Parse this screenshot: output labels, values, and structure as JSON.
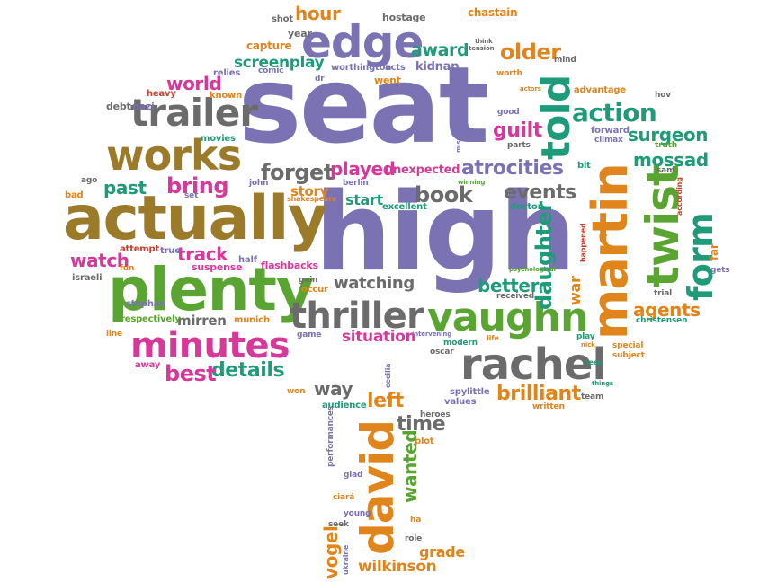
{
  "colors": {
    "purple": "#7b72b4",
    "brown": "#9b7a2a",
    "green": "#5aa532",
    "magenta": "#d6399a",
    "orange": "#e0841c",
    "teal": "#1f9b7a",
    "gray": "#6b6b6b",
    "red": "#c4412a"
  },
  "words": [
    {
      "text": "seat",
      "color": "purple"
    },
    {
      "text": "high",
      "color": "purple"
    },
    {
      "text": "actually",
      "color": "brown"
    },
    {
      "text": "plenty",
      "color": "green"
    },
    {
      "text": "edge",
      "color": "purple"
    },
    {
      "text": "works",
      "color": "brown"
    },
    {
      "text": "trailer",
      "color": "gray"
    },
    {
      "text": "minutes",
      "color": "magenta"
    },
    {
      "text": "thriller",
      "color": "gray"
    },
    {
      "text": "vaughn",
      "color": "green"
    },
    {
      "text": "rachel",
      "color": "gray"
    },
    {
      "text": "martin",
      "color": "orange"
    },
    {
      "text": "twist",
      "color": "green"
    },
    {
      "text": "told",
      "color": "green"
    },
    {
      "text": "form",
      "color": "teal"
    },
    {
      "text": "david",
      "color": "orange"
    },
    {
      "text": "action",
      "color": "teal"
    },
    {
      "text": "atrocities",
      "color": "purple"
    },
    {
      "text": "brilliant",
      "color": "orange"
    },
    {
      "text": "older",
      "color": "orange"
    },
    {
      "text": "daughter",
      "color": "teal"
    },
    {
      "text": "guilt",
      "color": "magenta"
    },
    {
      "text": "surgeon",
      "color": "teal"
    },
    {
      "text": "mossad",
      "color": "teal"
    },
    {
      "text": "book",
      "color": "gray"
    },
    {
      "text": "events",
      "color": "gray"
    },
    {
      "text": "forget",
      "color": "gray"
    },
    {
      "text": "played",
      "color": "magenta"
    },
    {
      "text": "bring",
      "color": "magenta"
    },
    {
      "text": "past",
      "color": "teal"
    },
    {
      "text": "details",
      "color": "teal"
    },
    {
      "text": "best",
      "color": "magenta"
    },
    {
      "text": "watching",
      "color": "gray"
    },
    {
      "text": "better",
      "color": "teal"
    },
    {
      "text": "situation",
      "color": "magenta"
    },
    {
      "text": "watch",
      "color": "magenta"
    },
    {
      "text": "track",
      "color": "magenta"
    },
    {
      "text": "award",
      "color": "teal"
    },
    {
      "text": "screenplay",
      "color": "teal"
    },
    {
      "text": "hour",
      "color": "orange"
    },
    {
      "text": "world",
      "color": "magenta"
    },
    {
      "text": "agents",
      "color": "orange"
    },
    {
      "text": "wilkinson",
      "color": "orange"
    },
    {
      "text": "vogel",
      "color": "orange"
    },
    {
      "text": "wanted",
      "color": "green"
    },
    {
      "text": "time",
      "color": "gray"
    },
    {
      "text": "left",
      "color": "orange"
    },
    {
      "text": "way",
      "color": "gray"
    },
    {
      "text": "grade",
      "color": "orange"
    },
    {
      "text": "mirren",
      "color": "gray"
    },
    {
      "text": "start",
      "color": "teal"
    },
    {
      "text": "story",
      "color": "orange"
    },
    {
      "text": "unexpected",
      "color": "magenta"
    },
    {
      "text": "war",
      "color": "orange"
    },
    {
      "text": "capture",
      "color": "orange"
    },
    {
      "text": "kidnap",
      "color": "purple"
    },
    {
      "text": "chastain",
      "color": "orange"
    },
    {
      "text": "worthington",
      "color": "purple"
    },
    {
      "text": "acts",
      "color": "purple"
    },
    {
      "text": "went",
      "color": "orange"
    },
    {
      "text": "year",
      "color": "gray"
    },
    {
      "text": "shot",
      "color": "gray"
    },
    {
      "text": "hostage",
      "color": "gray"
    },
    {
      "text": "relies",
      "color": "purple"
    },
    {
      "text": "heavy",
      "color": "red"
    },
    {
      "text": "known",
      "color": "orange"
    },
    {
      "text": "debt",
      "color": "gray"
    },
    {
      "text": "nazi",
      "color": "purple"
    },
    {
      "text": "movies",
      "color": "teal"
    },
    {
      "text": "ago",
      "color": "gray"
    },
    {
      "text": "bad",
      "color": "orange"
    },
    {
      "text": "john",
      "color": "purple"
    },
    {
      "text": "set",
      "color": "purple"
    },
    {
      "text": "berlin",
      "color": "purple"
    },
    {
      "text": "excellent",
      "color": "teal"
    },
    {
      "text": "doctor",
      "color": "teal"
    },
    {
      "text": "attempt",
      "color": "red"
    },
    {
      "text": "true",
      "color": "purple"
    },
    {
      "text": "fun",
      "color": "orange"
    },
    {
      "text": "suspense",
      "color": "magenta"
    },
    {
      "text": "half",
      "color": "purple"
    },
    {
      "text": "flashbacks",
      "color": "magenta"
    },
    {
      "text": "israeli",
      "color": "gray"
    },
    {
      "text": "stephan",
      "color": "purple"
    },
    {
      "text": "respectively",
      "color": "green"
    },
    {
      "text": "line",
      "color": "orange"
    },
    {
      "text": "munich",
      "color": "orange"
    },
    {
      "text": "occur",
      "color": "orange"
    },
    {
      "text": "gain",
      "color": "gray"
    },
    {
      "text": "game",
      "color": "purple"
    },
    {
      "text": "away",
      "color": "magenta"
    },
    {
      "text": "won",
      "color": "orange"
    },
    {
      "text": "cecilia",
      "color": "purple"
    },
    {
      "text": "audience",
      "color": "teal"
    },
    {
      "text": "heroes",
      "color": "gray"
    },
    {
      "text": "plot",
      "color": "orange"
    },
    {
      "text": "performances",
      "color": "purple"
    },
    {
      "text": "glad",
      "color": "purple"
    },
    {
      "text": "ciará",
      "color": "orange"
    },
    {
      "text": "young",
      "color": "purple"
    },
    {
      "text": "seek",
      "color": "gray"
    },
    {
      "text": "ha",
      "color": "orange"
    },
    {
      "text": "role",
      "color": "gray"
    },
    {
      "text": "ukraine",
      "color": "purple"
    },
    {
      "text": "spylittle",
      "color": "purple"
    },
    {
      "text": "values",
      "color": "purple"
    },
    {
      "text": "written",
      "color": "orange"
    },
    {
      "text": "team",
      "color": "gray"
    },
    {
      "text": "oscar",
      "color": "gray"
    },
    {
      "text": "modern",
      "color": "teal"
    },
    {
      "text": "life",
      "color": "orange"
    },
    {
      "text": "intervening",
      "color": "purple"
    },
    {
      "text": "received",
      "color": "gray"
    },
    {
      "text": "psychological",
      "color": "green"
    },
    {
      "text": "play",
      "color": "teal"
    },
    {
      "text": "nick",
      "color": "orange"
    },
    {
      "text": "special",
      "color": "orange"
    },
    {
      "text": "subject",
      "color": "orange"
    },
    {
      "text": "seen",
      "color": "teal"
    },
    {
      "text": "things",
      "color": "teal"
    },
    {
      "text": "christensen",
      "color": "teal"
    },
    {
      "text": "trial",
      "color": "gray"
    },
    {
      "text": "gets",
      "color": "purple"
    },
    {
      "text": "far",
      "color": "orange"
    },
    {
      "text": "according",
      "color": "red"
    },
    {
      "text": "happened",
      "color": "red"
    },
    {
      "text": "sam",
      "color": "gray"
    },
    {
      "text": "truth",
      "color": "green"
    },
    {
      "text": "hov",
      "color": "gray"
    },
    {
      "text": "forward",
      "color": "purple"
    },
    {
      "text": "climax",
      "color": "purple"
    },
    {
      "text": "advantage",
      "color": "orange"
    },
    {
      "text": "mind",
      "color": "gray"
    },
    {
      "text": "worth",
      "color": "orange"
    },
    {
      "text": "good",
      "color": "purple"
    },
    {
      "text": "parts",
      "color": "gray"
    },
    {
      "text": "actors",
      "color": "orange"
    },
    {
      "text": "mission",
      "color": "purple"
    },
    {
      "text": "winning",
      "color": "green"
    },
    {
      "text": "bit",
      "color": "teal"
    },
    {
      "text": "shakespeare",
      "color": "orange"
    },
    {
      "text": "dr",
      "color": "purple"
    },
    {
      "text": "comic",
      "color": "purple"
    },
    {
      "text": "tension",
      "color": "gray"
    },
    {
      "text": "think",
      "color": "gray"
    }
  ]
}
